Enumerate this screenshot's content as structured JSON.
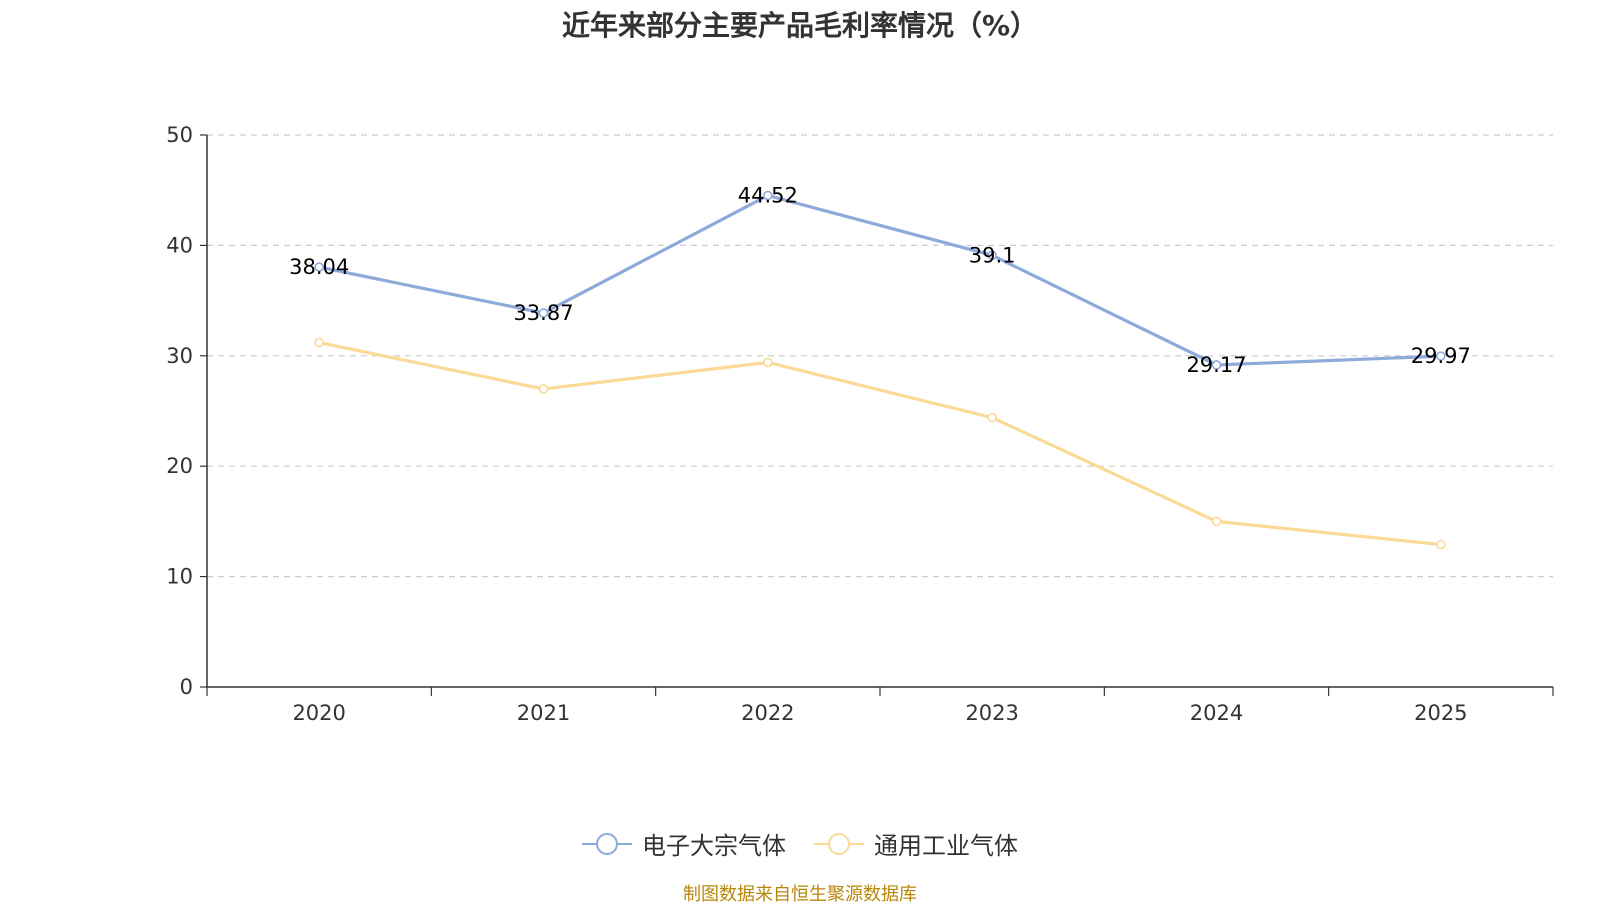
{
  "chart_data": {
    "type": "line",
    "title": "近年来部分主要产品毛利率情况（%）",
    "categories": [
      "2020",
      "2021",
      "2022",
      "2023",
      "2024",
      "2025"
    ],
    "ylim": [
      0,
      50
    ],
    "yticks": [
      0,
      10,
      20,
      30,
      40,
      50
    ],
    "grid": true,
    "legend_position": "bottom",
    "series": [
      {
        "name": "电子大宗气体",
        "color": "#8eaadb",
        "values": [
          38.04,
          33.87,
          44.52,
          39.1,
          29.17,
          29.97
        ],
        "labels": [
          "38.04",
          "33.87",
          "44.52",
          "39.1",
          "29.17",
          "29.97"
        ],
        "show_labels": true
      },
      {
        "name": "通用工业气体",
        "color": "#fbd996",
        "values": [
          31.2,
          27.0,
          29.4,
          24.4,
          15.0,
          12.9
        ],
        "show_labels": false
      }
    ],
    "source": "制图数据来自恒生聚源数据库"
  }
}
